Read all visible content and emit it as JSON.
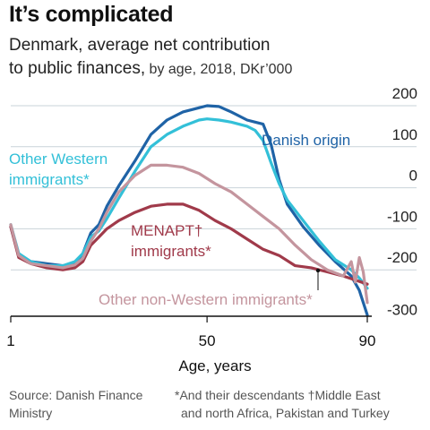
{
  "title": "It’s complicated",
  "subtitle_line1": "Denmark, average net contribution",
  "subtitle_line2_main": "to public finances,",
  "subtitle_line2_detail": " by age, 2018, DKr’000",
  "source": "Source: Danish Finance Ministry",
  "footnote_line1": "*And their descendants   †Middle East",
  "footnote_line2": "and north Africa, Pakistan and Turkey",
  "chart_data": {
    "type": "line",
    "xlabel": "Age, years",
    "ylabel": "",
    "xlim": [
      1,
      90
    ],
    "ylim": [
      -300,
      200
    ],
    "xticks": [
      "1",
      "50",
      "90"
    ],
    "yticks": [
      "200",
      "100",
      "0",
      "-100",
      "-200",
      "-300"
    ],
    "grid": "horizontal",
    "series": [
      {
        "name": "Danish origin",
        "color": "#1f63a6",
        "x": [
          1,
          3,
          6,
          10,
          14,
          17,
          19,
          21,
          23,
          25,
          28,
          32,
          36,
          40,
          44,
          48,
          50,
          53,
          56,
          60,
          62,
          64,
          66,
          68,
          70,
          74,
          78,
          82,
          86,
          88,
          90
        ],
        "y": [
          -95,
          -165,
          -180,
          -185,
          -190,
          -185,
          -160,
          -110,
          -90,
          -45,
          5,
          65,
          130,
          165,
          185,
          195,
          200,
          198,
          185,
          165,
          160,
          155,
          105,
          20,
          -40,
          -95,
          -140,
          -180,
          -215,
          -250,
          -310
        ]
      },
      {
        "name": "Other Western immigrants*",
        "color": "#33c0d8",
        "x": [
          1,
          3,
          6,
          10,
          14,
          17,
          19,
          21,
          23,
          25,
          28,
          32,
          36,
          40,
          44,
          48,
          50,
          53,
          56,
          60,
          62,
          64,
          66,
          68,
          70,
          74,
          78,
          82,
          86,
          88,
          90
        ],
        "y": [
          -90,
          -160,
          -180,
          -190,
          -190,
          -180,
          -160,
          -120,
          -105,
          -75,
          -25,
          40,
          100,
          130,
          150,
          165,
          168,
          165,
          160,
          150,
          140,
          115,
          60,
          10,
          -30,
          -80,
          -130,
          -175,
          -200,
          -220,
          -245
        ]
      },
      {
        "name": "MENAPT† immigrants*",
        "color": "#a03a4a",
        "x": [
          1,
          3,
          6,
          10,
          14,
          17,
          19,
          21,
          23,
          25,
          28,
          32,
          36,
          40,
          44,
          48,
          52,
          56,
          60,
          64,
          68,
          72,
          76,
          80,
          84,
          87,
          90
        ],
        "y": [
          -95,
          -170,
          -185,
          -195,
          -200,
          -195,
          -180,
          -140,
          -120,
          -100,
          -80,
          -60,
          -45,
          -40,
          -40,
          -55,
          -80,
          -100,
          -125,
          -150,
          -165,
          -190,
          -195,
          -205,
          -215,
          -225,
          -235
        ]
      },
      {
        "name": "Other non-Western immigrants*",
        "color": "#c4959e",
        "x": [
          1,
          3,
          6,
          10,
          14,
          17,
          19,
          21,
          23,
          25,
          28,
          32,
          36,
          40,
          44,
          48,
          52,
          56,
          60,
          64,
          68,
          72,
          76,
          80,
          84,
          86,
          87,
          88,
          89,
          90
        ],
        "y": [
          -90,
          -165,
          -185,
          -190,
          -195,
          -188,
          -172,
          -130,
          -100,
          -60,
          -10,
          30,
          55,
          55,
          50,
          35,
          10,
          -10,
          -40,
          -70,
          -100,
          -140,
          -175,
          -200,
          -215,
          -180,
          -230,
          -170,
          -205,
          -280
        ]
      }
    ],
    "annotations": [
      {
        "text": "Danish origin",
        "color": "#1f63a6"
      },
      {
        "text": "Other Western",
        "color": "#33c0d8"
      },
      {
        "text": "immigrants*",
        "color": "#33c0d8"
      },
      {
        "text": "MENAPT†",
        "color": "#a03a4a"
      },
      {
        "text": "immigrants*",
        "color": "#a03a4a"
      },
      {
        "text": "Other non-Western immigrants*",
        "color": "#c4959e"
      }
    ]
  }
}
